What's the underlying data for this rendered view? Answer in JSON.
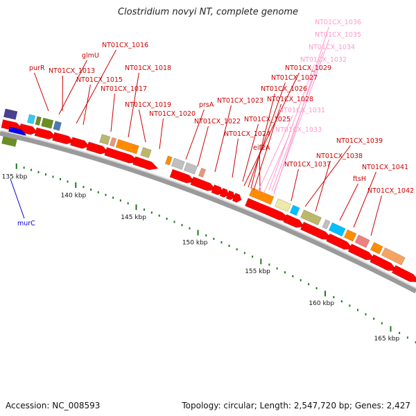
{
  "title": "Clostridium novyi NT, complete genome",
  "footer": {
    "accession": "Accession: NC_008593",
    "summary": "Topology: circular; Length: 2,547,720 bp; Genes: 2,427"
  },
  "ruler": [
    {
      "pos": 135,
      "label": "135 kbp"
    },
    {
      "pos": 140,
      "label": "140 kbp"
    },
    {
      "pos": 145,
      "label": "145 kbp"
    },
    {
      "pos": 150,
      "label": "150 kbp"
    },
    {
      "pos": 155,
      "label": "155 kbp"
    },
    {
      "pos": 160,
      "label": "160 kbp"
    },
    {
      "pos": 165,
      "label": "165 kbp"
    }
  ],
  "colors": {
    "cds": "#ff0000",
    "backbone": "#9a9a9a",
    "tick": "#1a7a1a",
    "rna_label": "#ff99cc",
    "gene_label": "#cc0000",
    "rev_label": "#0000cc"
  },
  "gene_labels": [
    {
      "text": "purR",
      "color": "red"
    },
    {
      "text": "glmU",
      "color": "red"
    },
    {
      "text": "NT01CX_1016",
      "color": "red"
    },
    {
      "text": "NT01CX_1013",
      "color": "red"
    },
    {
      "text": "NT01CX_1015",
      "color": "red"
    },
    {
      "text": "NT01CX_1018",
      "color": "red"
    },
    {
      "text": "NT01CX_1017",
      "color": "red"
    },
    {
      "text": "NT01CX_1019",
      "color": "red"
    },
    {
      "text": "NT01CX_1020",
      "color": "red"
    },
    {
      "text": "prsA",
      "color": "red"
    },
    {
      "text": "NT01CX_1022",
      "color": "red"
    },
    {
      "text": "NT01CX_1023",
      "color": "red"
    },
    {
      "text": "NT01CX_1024",
      "color": "red"
    },
    {
      "text": "NT01CX_1025",
      "color": "red"
    },
    {
      "text": "eif2A",
      "color": "red"
    },
    {
      "text": "NT01CX_1036",
      "color": "pink"
    },
    {
      "text": "NT01CX_1035",
      "color": "pink"
    },
    {
      "text": "NT01CX_1034",
      "color": "pink"
    },
    {
      "text": "NT01CX_1032",
      "color": "pink"
    },
    {
      "text": "NT01CX_1029",
      "color": "red"
    },
    {
      "text": "NT01CX_1027",
      "color": "red"
    },
    {
      "text": "NT01CX_1026",
      "color": "red"
    },
    {
      "text": "NT01CX_1028",
      "color": "red"
    },
    {
      "text": "NT01CX_1031",
      "color": "pink"
    },
    {
      "text": "NT01CX_1033",
      "color": "pink"
    },
    {
      "text": "NT01CX_1039",
      "color": "red"
    },
    {
      "text": "NT01CX_1038",
      "color": "red"
    },
    {
      "text": "NT01CX_1037",
      "color": "red"
    },
    {
      "text": "ftsH",
      "color": "red"
    },
    {
      "text": "NT01CX_1041",
      "color": "red"
    },
    {
      "text": "NT01CX_1042",
      "color": "red"
    },
    {
      "text": "murC",
      "color": "blue"
    }
  ]
}
